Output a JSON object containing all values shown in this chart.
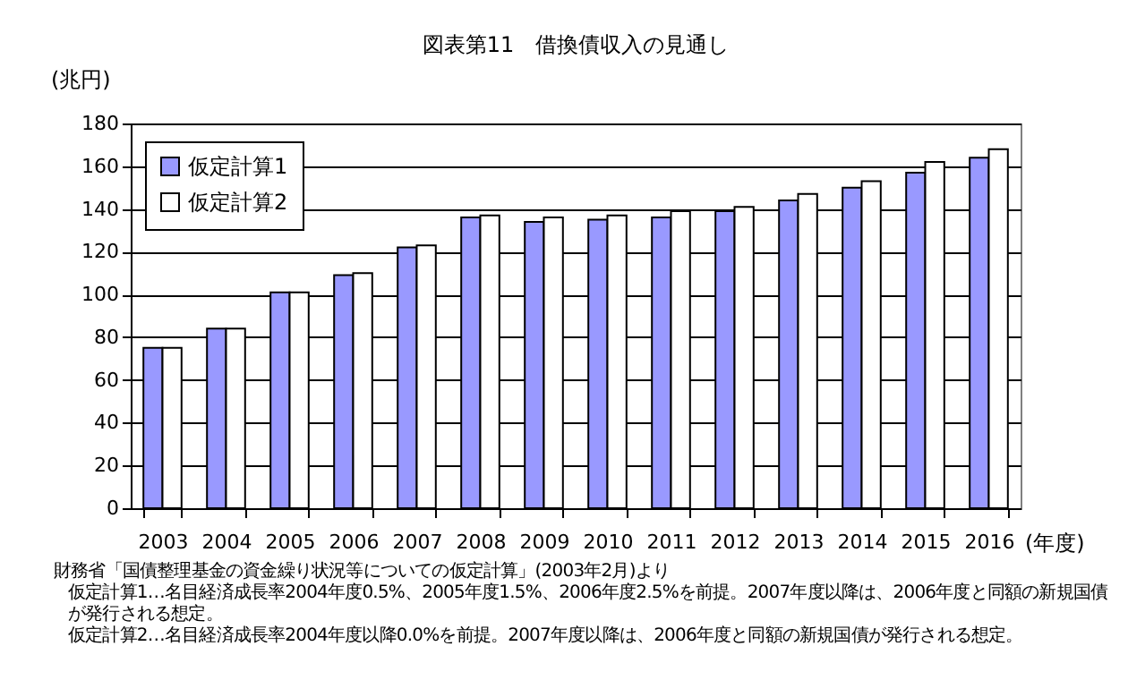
{
  "chart_data": {
    "type": "bar",
    "title": "図表第11　借換債収入の見通し",
    "ylabel": "(兆円)",
    "xlabel": "(年度)",
    "categories": [
      "2003",
      "2004",
      "2005",
      "2006",
      "2007",
      "2008",
      "2009",
      "2010",
      "2011",
      "2012",
      "2013",
      "2014",
      "2015",
      "2016"
    ],
    "series": [
      {
        "name": "仮定計算1",
        "color": "#9999ff",
        "values": [
          75,
          84,
          101,
          109,
          122,
          136,
          134,
          135,
          136,
          139,
          144,
          150,
          157,
          164
        ]
      },
      {
        "name": "仮定計算2",
        "color": "#ffffff",
        "values": [
          75,
          84,
          101,
          110,
          123,
          137,
          136,
          137,
          139,
          141,
          147,
          153,
          162,
          168
        ]
      }
    ],
    "ylim": [
      0,
      180
    ],
    "yticks": [
      0,
      20,
      40,
      60,
      80,
      100,
      120,
      140,
      160,
      180
    ],
    "grid": "y",
    "legend": "top left",
    "annotations": [
      "財務省「国債整理基金の資金繰り状況等についての仮定計算」(2003年2月)より",
      "仮定計算1…名目経済成長率2004年度0.5%、2005年度1.5%、2006年度2.5%を前提。2007年度以降は、2006年度と同額の新規国債が発行される想定。",
      "仮定計算2…名目経済成長率2004年度以降0.0%を前提。2007年度以降は、2006年度と同額の新規国債が発行される想定。"
    ]
  }
}
